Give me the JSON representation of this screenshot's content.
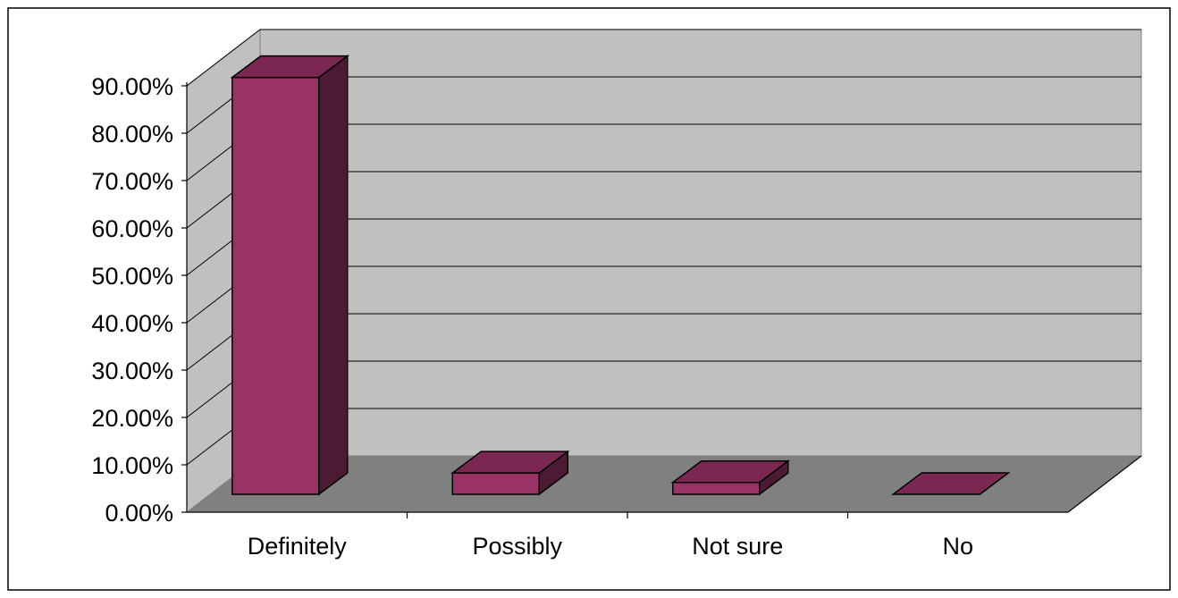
{
  "chart_data": {
    "type": "bar",
    "title": "",
    "xlabel": "",
    "ylabel": "",
    "categories": [
      "Definitely",
      "Possibly",
      "Not sure",
      "No"
    ],
    "values": [
      88.0,
      4.5,
      2.5,
      0.0
    ],
    "ylim": [
      0,
      90
    ],
    "yticks": [
      "0.00%",
      "10.00%",
      "20.00%",
      "30.00%",
      "40.00%",
      "50.00%",
      "60.00%",
      "70.00%",
      "80.00%",
      "90.00%"
    ],
    "grid": true,
    "legend": "none",
    "three_d": true,
    "colors": {
      "bar_front": "#993366",
      "bar_top": "#7a2852",
      "bar_side": "#4d1a33",
      "back_wall": "#c0c0c0",
      "side_wall": "#c0c0c0",
      "floor": "#808080",
      "outline": "#000000"
    }
  }
}
